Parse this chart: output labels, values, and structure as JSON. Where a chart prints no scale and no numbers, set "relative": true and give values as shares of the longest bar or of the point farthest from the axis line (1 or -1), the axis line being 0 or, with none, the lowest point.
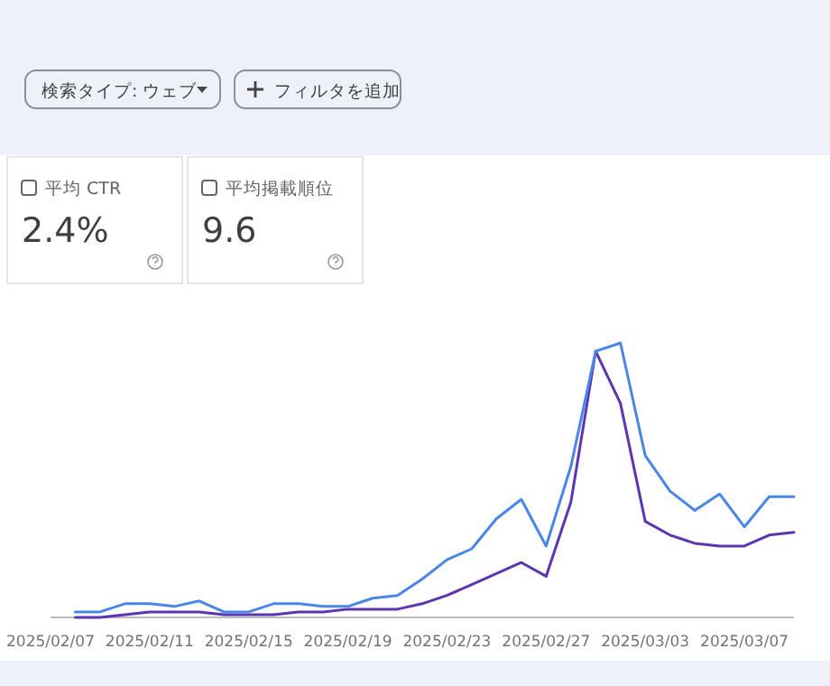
{
  "chart_data": [
    {
      "type": "other",
      "categories": [
        "平均 CTR",
        "平均掲載順位"
      ],
      "value_labels": [
        "2.4%",
        "9.6"
      ],
      "annotations": [
        "検索タイプ: ウェブ",
        "フィルタを追加"
      ]
    },
    {
      "type": "line",
      "relative": true,
      "marker": "none",
      "tick_labels": "x",
      "x": [
        "2025-02-08",
        "2025-02-09",
        "2025-02-10",
        "2025-02-11",
        "2025-02-12",
        "2025-02-13",
        "2025-02-14",
        "2025-02-15",
        "2025-02-16",
        "2025-02-17",
        "2025-02-18",
        "2025-02-19",
        "2025-02-20",
        "2025-02-21",
        "2025-02-22",
        "2025-02-23",
        "2025-02-24",
        "2025-02-25",
        "2025-02-26",
        "2025-02-27",
        "2025-02-28",
        "2025-03-01",
        "2025-03-02",
        "2025-03-03",
        "2025-03-04",
        "2025-03-05",
        "2025-03-06",
        "2025-03-07",
        "2025-03-08",
        "2025-03-09"
      ],
      "xlim": [
        "2025-02-07",
        "2025-03-09"
      ],
      "xticks": [
        {
          "value": "2025-02-07",
          "label": "2025/02/07"
        },
        {
          "value": "2025-02-11",
          "label": "2025/02/11"
        },
        {
          "value": "2025-02-15",
          "label": "2025/02/15"
        },
        {
          "value": "2025-02-19",
          "label": "2025/02/19"
        },
        {
          "value": "2025-02-23",
          "label": "2025/02/23"
        },
        {
          "value": "2025-02-27",
          "label": "2025/02/27"
        },
        {
          "value": "2025-03-03",
          "label": "2025/03/03"
        },
        {
          "value": "2025-03-07",
          "label": "2025/03/07"
        }
      ],
      "series": [
        {
          "color": "#5e35b1",
          "values": [
            0,
            0,
            0.01,
            0.02,
            0.02,
            0.02,
            0.01,
            0.01,
            0.01,
            0.02,
            0.02,
            0.03,
            0.03,
            0.03,
            0.05,
            0.08,
            0.12,
            0.16,
            0.2,
            0.15,
            0.42,
            0.97,
            0.78,
            0.35,
            0.3,
            0.27,
            0.26,
            0.26,
            0.3,
            0.31
          ]
        },
        {
          "color": "#4a86e8",
          "values": [
            0.02,
            0.02,
            0.05,
            0.05,
            0.04,
            0.06,
            0.02,
            0.02,
            0.05,
            0.05,
            0.04,
            0.04,
            0.07,
            0.08,
            0.14,
            0.21,
            0.25,
            0.36,
            0.43,
            0.26,
            0.55,
            0.97,
            1,
            0.59,
            0.46,
            0.39,
            0.45,
            0.33,
            0.44,
            0.44
          ]
        }
      ]
    }
  ]
}
